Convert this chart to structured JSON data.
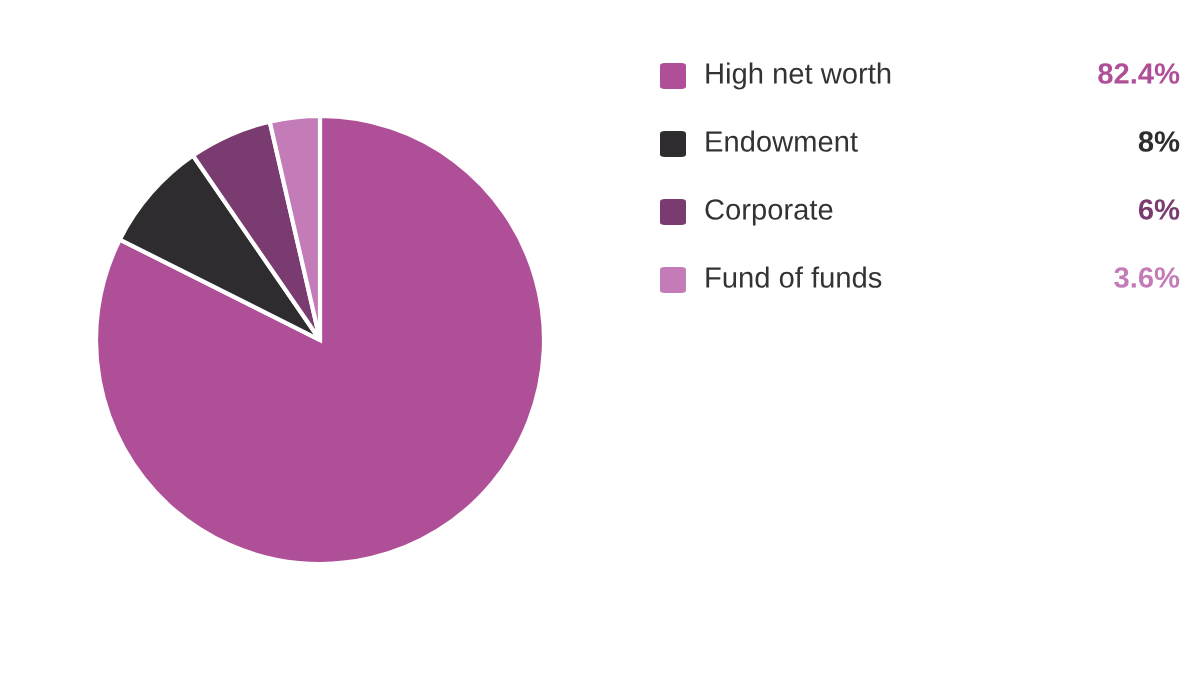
{
  "chart_data": {
    "type": "pie",
    "categories": [
      "High net worth",
      "Endowment",
      "Corporate",
      "Fund of funds"
    ],
    "values": [
      82.4,
      8,
      6,
      3.6
    ],
    "colors": [
      "#ae4f97",
      "#2e2c2f",
      "#7a3b70",
      "#c47cb8"
    ],
    "value_labels": [
      "82.4%",
      "8%",
      "6%",
      "3.6%"
    ],
    "legend": "right"
  }
}
